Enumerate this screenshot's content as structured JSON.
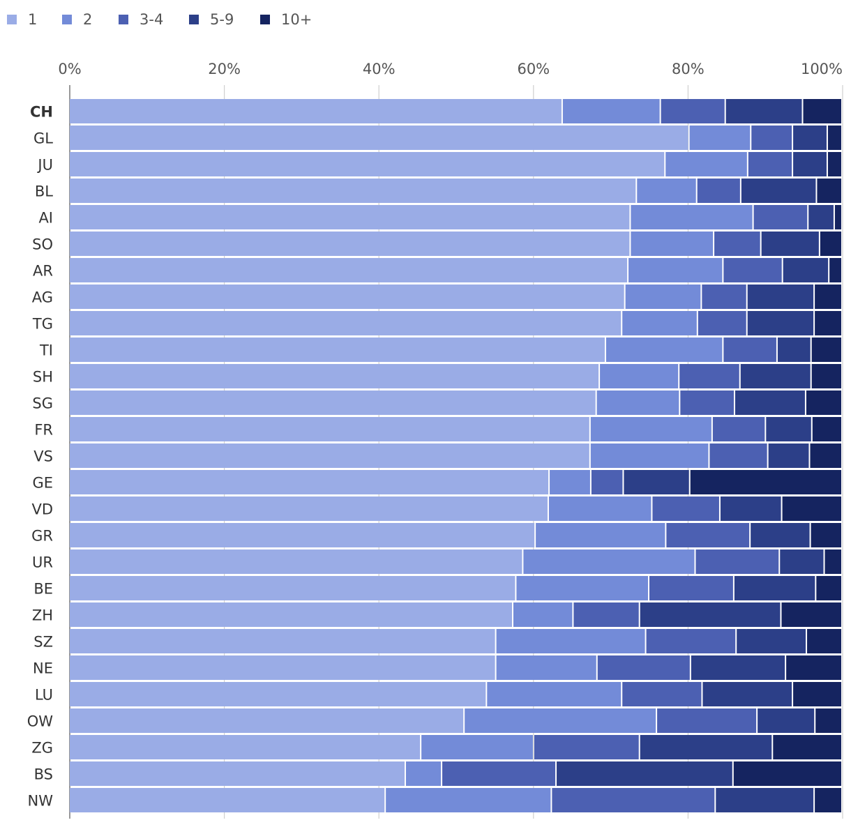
{
  "chart_data": {
    "type": "bar",
    "orientation": "horizontal",
    "stacked": true,
    "percent": true,
    "title": "",
    "xlabel": "",
    "ylabel": "",
    "xlim": [
      0,
      100
    ],
    "xticks": [
      "0%",
      "20%",
      "40%",
      "60%",
      "80%",
      "100%"
    ],
    "grid": true,
    "legend_position": "top-left",
    "categories": [
      "CH",
      "GL",
      "JU",
      "BL",
      "AI",
      "SO",
      "AR",
      "AG",
      "TG",
      "TI",
      "SH",
      "SG",
      "FR",
      "VS",
      "GE",
      "VD",
      "GR",
      "UR",
      "BE",
      "ZH",
      "SZ",
      "NE",
      "LU",
      "OW",
      "ZG",
      "BS",
      "NW"
    ],
    "highlighted_category": "CH",
    "series": [
      {
        "name": "1",
        "color": "#9aace6",
        "values": [
          63.8,
          80.2,
          77.1,
          73.4,
          72.6,
          72.6,
          72.3,
          71.9,
          71.5,
          69.4,
          68.6,
          68.2,
          67.4,
          67.4,
          62.1,
          62.0,
          60.3,
          58.7,
          57.8,
          57.4,
          55.2,
          55.2,
          54.0,
          51.1,
          45.5,
          43.5,
          40.9
        ]
      },
      {
        "name": "2",
        "color": "#738bd8",
        "values": [
          12.7,
          8.0,
          10.7,
          7.8,
          15.9,
          10.8,
          12.3,
          9.9,
          9.8,
          15.2,
          10.3,
          10.8,
          15.8,
          15.4,
          5.4,
          13.4,
          16.9,
          22.3,
          17.2,
          7.8,
          19.4,
          13.1,
          17.5,
          24.9,
          14.6,
          4.7,
          21.5
        ]
      },
      {
        "name": "3-4",
        "color": "#4c60b2",
        "values": [
          8.4,
          5.4,
          5.8,
          5.7,
          7.1,
          6.1,
          7.7,
          5.9,
          6.4,
          7.0,
          7.9,
          7.1,
          6.9,
          7.6,
          4.2,
          8.8,
          10.9,
          10.9,
          11.0,
          8.6,
          11.7,
          12.1,
          10.4,
          13.0,
          13.7,
          14.8,
          21.2
        ]
      },
      {
        "name": "5-9",
        "color": "#2c3f88",
        "values": [
          10.0,
          4.5,
          4.5,
          9.8,
          3.4,
          7.6,
          6.0,
          8.7,
          8.7,
          4.4,
          9.2,
          9.2,
          6.0,
          5.4,
          8.6,
          8.0,
          7.8,
          5.8,
          10.6,
          18.3,
          9.1,
          12.3,
          11.7,
          7.5,
          17.2,
          22.9,
          12.8
        ]
      },
      {
        "name": "10+",
        "color": "#152460",
        "values": [
          5.1,
          1.9,
          1.9,
          3.3,
          1.0,
          2.9,
          1.7,
          3.6,
          3.6,
          4.0,
          4.0,
          4.7,
          3.9,
          4.2,
          19.7,
          7.8,
          4.1,
          2.3,
          3.4,
          7.9,
          4.6,
          7.3,
          6.4,
          3.5,
          9.0,
          14.1,
          3.6
        ]
      }
    ]
  }
}
